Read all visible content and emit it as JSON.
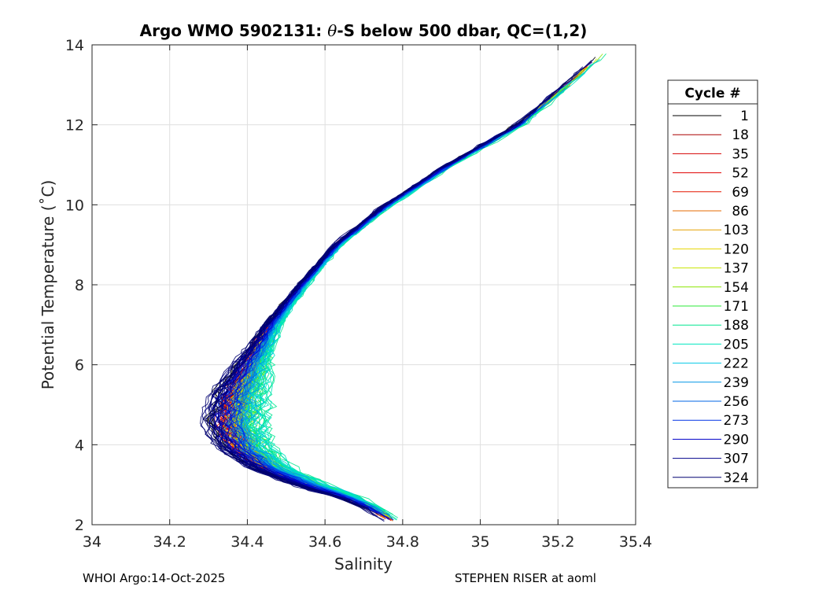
{
  "chart_data": {
    "type": "line",
    "title": "Argo WMO 5902131: θ-S below 500 dbar,  QC=(1,2)",
    "title_parts": {
      "prefix": "Argo WMO 5902131: ",
      "theta": "θ",
      "suffix": "-S below 500 dbar,  QC=(1,2)"
    },
    "xlabel": "Salinity",
    "ylabel": "Potential Temperature (˚C)",
    "xlim": [
      34,
      35.4
    ],
    "ylim": [
      2,
      14
    ],
    "x_ticks": [
      34,
      34.2,
      34.4,
      34.6,
      34.8,
      35,
      35.2,
      35.4
    ],
    "x_tick_labels": [
      "34",
      "34.2",
      "34.4",
      "34.6",
      "34.8",
      "35",
      "35.2",
      "35.4"
    ],
    "y_ticks": [
      2,
      4,
      6,
      8,
      10,
      12,
      14
    ],
    "y_tick_labels": [
      "2",
      "4",
      "6",
      "8",
      "10",
      "12",
      "14"
    ],
    "grid": true,
    "legend_title": "Cycle #",
    "legend_position": "right",
    "series": [
      {
        "name": "1",
        "color": "#000000",
        "offset": -0.012
      },
      {
        "name": "18",
        "color": "#aa0000",
        "offset": 0.006
      },
      {
        "name": "35",
        "color": "#d40000",
        "offset": 0.004
      },
      {
        "name": "52",
        "color": "#e00000",
        "offset": 0.002
      },
      {
        "name": "69",
        "color": "#e61500",
        "offset": 0.003
      },
      {
        "name": "86",
        "color": "#e66a00",
        "offset": 0.008
      },
      {
        "name": "103",
        "color": "#e6a000",
        "offset": 0.01
      },
      {
        "name": "120",
        "color": "#e6d400",
        "offset": 0.012
      },
      {
        "name": "137",
        "color": "#c8e600",
        "offset": 0.016
      },
      {
        "name": "154",
        "color": "#8ae600",
        "offset": 0.022
      },
      {
        "name": "171",
        "color": "#2ee83a",
        "offset": 0.032
      },
      {
        "name": "188",
        "color": "#00e690",
        "offset": 0.044
      },
      {
        "name": "205",
        "color": "#00e6c0",
        "offset": 0.04
      },
      {
        "name": "222",
        "color": "#00c8e6",
        "offset": 0.03
      },
      {
        "name": "239",
        "color": "#0096e6",
        "offset": 0.018
      },
      {
        "name": "256",
        "color": "#0064e6",
        "offset": 0.01
      },
      {
        "name": "273",
        "color": "#0032e6",
        "offset": 0.0
      },
      {
        "name": "290",
        "color": "#0000c8",
        "offset": -0.01
      },
      {
        "name": "307",
        "color": "#00008c",
        "offset": -0.022
      },
      {
        "name": "324",
        "color": "#000070",
        "offset": -0.03
      }
    ],
    "base_profile": {
      "salinity": [
        34.77,
        34.72,
        34.65,
        34.55,
        34.45,
        34.38,
        34.35,
        34.36,
        34.4,
        34.46,
        34.54,
        34.63,
        34.76,
        34.92,
        35.1,
        35.33
      ],
      "temperature": [
        2.1,
        2.4,
        2.7,
        3.0,
        3.4,
        3.9,
        4.5,
        5.2,
        6.0,
        7.0,
        8.0,
        9.0,
        10.0,
        11.0,
        12.0,
        13.9
      ]
    }
  },
  "footer": {
    "left": "WHOI Argo:14-Oct-2025",
    "right": "STEPHEN RISER at aoml"
  }
}
